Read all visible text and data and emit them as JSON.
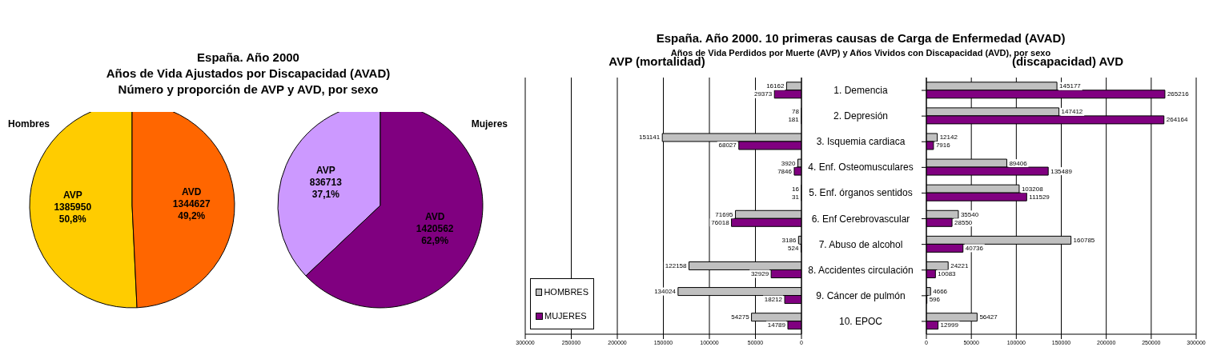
{
  "chart_data": [
    {
      "type": "other",
      "title": "España. Año 2000",
      "subtitle": "Años de Vida Ajustados por Discapacidad (AVAD)",
      "annotations": [
        "Número y proporción de AVP y AVD, por sexo"
      ]
    },
    {
      "type": "pie",
      "title": "Hombres",
      "categories": [
        "AVP",
        "AVD"
      ],
      "values": [
        1385950,
        1344627
      ],
      "colors": [
        "#ffcc00",
        "#ff6600"
      ],
      "value_labels": [
        "1385950\n50,8%",
        "1344627\n49,2%"
      ]
    },
    {
      "type": "pie",
      "title": "Mujeres",
      "categories": [
        "AVP",
        "AVD"
      ],
      "values": [
        836713,
        1420562
      ],
      "colors": [
        "#cc99ff",
        "#800080"
      ],
      "value_labels": [
        "836713\n37,1%",
        "1420562\n62,9%"
      ]
    },
    {
      "type": "other",
      "title": "España. Año 2000. 10 primeras causas de Carga de Enfermedad (AVAD)",
      "subtitle": "Años de Vida Perdidos por Muerte (AVP) y Años Vividos con Discapacidad (AVD), por sexo"
    },
    {
      "type": "bar",
      "orientation": "horizontal",
      "title": "AVP (mortalidad)",
      "tick_labels": "x",
      "xlim": [
        300000,
        0
      ],
      "xticks": [
        300000,
        250000,
        200000,
        150000,
        100000,
        50000,
        0
      ],
      "grid": "x",
      "legend": "bottom left",
      "data_labels": true,
      "series": [
        {
          "name": "HOMBRES",
          "color": "#c0c0c0",
          "values": [
            16162,
            78,
            151141,
            3920,
            16,
            71695,
            3186,
            122158,
            134024,
            54275
          ]
        },
        {
          "name": "MUJERES",
          "color": "#800080",
          "values": [
            29373,
            181,
            68027,
            7846,
            31,
            76018,
            524,
            32929,
            18212,
            14789
          ]
        }
      ]
    },
    {
      "type": "bar",
      "orientation": "horizontal",
      "title": "(discapacidad) AVD",
      "categories": [
        "1. Demencia",
        "2. Depresión",
        "3. Isquemia cardiaca",
        "4. Enf. Osteomusculares",
        "5. Enf. órganos sentidos",
        "6. Enf Cerebrovascular",
        "7. Abuso de alcohol",
        "8. Accidentes circulación",
        "9. Cáncer de pulmón",
        "10. EPOC"
      ],
      "xlim": [
        0,
        300000
      ],
      "xticks": [
        0,
        50000,
        100000,
        150000,
        200000,
        250000,
        300000
      ],
      "grid": "x",
      "data_labels": true,
      "series": [
        {
          "color": "#c0c0c0",
          "values": [
            145177,
            147412,
            12142,
            89406,
            103208,
            35540,
            160785,
            24221,
            4666,
            56427
          ]
        },
        {
          "color": "#800080",
          "values": [
            265216,
            264164,
            7916,
            135489,
            111529,
            28550,
            40736,
            10083,
            596,
            12999
          ]
        }
      ]
    }
  ]
}
